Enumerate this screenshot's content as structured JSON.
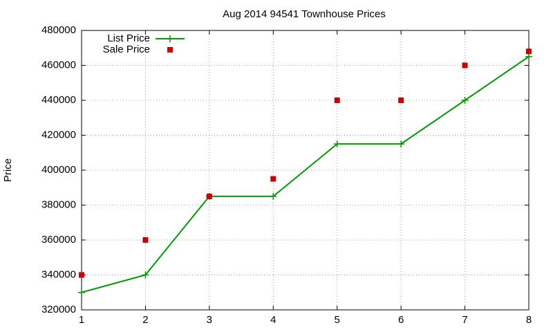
{
  "chart_data": {
    "type": "line",
    "title": "Aug 2014 94541 Townhouse Prices",
    "y_label": "Price",
    "x": [
      1,
      2,
      3,
      4,
      5,
      6,
      7,
      8
    ],
    "series": [
      {
        "name": "List Price",
        "color": "#009900",
        "style": "linespoints",
        "values": [
          330000,
          340000,
          385000,
          385000,
          415000,
          415000,
          440000,
          465000
        ]
      },
      {
        "name": "Sale Price",
        "color": "#cc0000",
        "style": "points",
        "values": [
          340000,
          360000,
          385000,
          395000,
          440000,
          440000,
          460000,
          468000
        ]
      }
    ],
    "xlim": [
      1,
      8
    ],
    "xticks": [
      1,
      2,
      3,
      4,
      5,
      6,
      7,
      8
    ],
    "ylim": [
      320000,
      480000
    ],
    "yticks": [
      320000,
      340000,
      360000,
      380000,
      400000,
      420000,
      440000,
      460000,
      480000
    ],
    "grid": true,
    "legend": "top-left"
  }
}
